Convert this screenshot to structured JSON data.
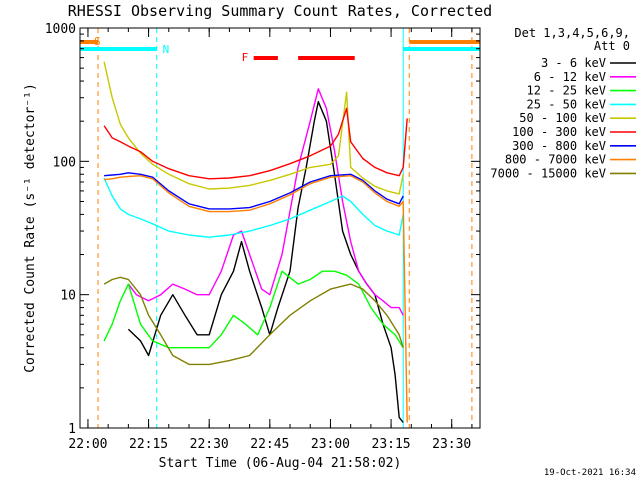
{
  "chart_data": {
    "type": "line",
    "title": "RHESSI Observing Summary Count Rates, Corrected",
    "xlabel": "Start Time (06-Aug-04 21:58:02)",
    "ylabel": "Corrected Count Rate (s⁻¹ detector⁻¹)",
    "y_scale": "log",
    "xlim": [
      "21:58:02",
      "23:37:00"
    ],
    "ylim": [
      1,
      1000
    ],
    "x_ticks": [
      "22:00",
      "22:15",
      "22:30",
      "22:45",
      "23:00",
      "23:15",
      "23:30"
    ],
    "y_ticks": [
      "1",
      "10",
      "100",
      "1000"
    ],
    "grid": false,
    "legend_position": "top-right, outside plot",
    "legend_header": [
      "Det 1,3,4,5,6,9,",
      "Att 0"
    ],
    "footer_date": "19-Oct-2021 16:34",
    "flags": [
      {
        "label": "S",
        "color": "#ff8000",
        "x_start": "21:58:02",
        "x_end": "22:02:30"
      },
      {
        "label": "N",
        "color": "#00ffff",
        "x_start": "21:58:02",
        "x_end": "22:17:00"
      },
      {
        "label": "F",
        "color": "#ff0000",
        "x_start": "22:41:00",
        "x_end": "22:47:00"
      },
      {
        "label": "",
        "color": "#ff0000",
        "x_start": "22:52:00",
        "x_end": "23:06:00"
      },
      {
        "label": "",
        "color": "#00ffff",
        "x_start": "23:18:00",
        "x_end": "23:37:00"
      },
      {
        "label": "",
        "color": "#ff8000",
        "x_start": "23:19:30",
        "x_end": "23:37:00"
      }
    ],
    "markers": [
      {
        "time": "21:58:02",
        "color": "#00ffff"
      },
      {
        "time": "22:02:30",
        "color": "#ff8000"
      },
      {
        "time": "22:17:00",
        "color": "#00ffff"
      },
      {
        "time": "23:18:00",
        "color": "#00ffff"
      },
      {
        "time": "23:19:30",
        "color": "#ff8000"
      },
      {
        "time": "23:35:00",
        "color": "#ff8000"
      }
    ],
    "series": [
      {
        "name": "3 - 6 keV",
        "color": "#000000",
        "points": [
          [
            "22:10",
            5.5
          ],
          [
            "22:13",
            4.5
          ],
          [
            "22:15",
            3.5
          ],
          [
            "22:18",
            7
          ],
          [
            "22:21",
            10
          ],
          [
            "22:24",
            7
          ],
          [
            "22:27",
            5
          ],
          [
            "22:30",
            5
          ],
          [
            "22:33",
            10
          ],
          [
            "22:36",
            15
          ],
          [
            "22:38",
            25
          ],
          [
            "22:40",
            15
          ],
          [
            "22:43",
            8
          ],
          [
            "22:45",
            5
          ],
          [
            "22:47",
            8
          ],
          [
            "22:50",
            15
          ],
          [
            "22:52",
            45
          ],
          [
            "22:54",
            90
          ],
          [
            "22:56",
            200
          ],
          [
            "22:57",
            280
          ],
          [
            "22:59",
            200
          ],
          [
            "23:01",
            80
          ],
          [
            "23:03",
            30
          ],
          [
            "23:05",
            20
          ],
          [
            "23:07",
            15
          ],
          [
            "23:09",
            12
          ],
          [
            "23:11",
            10
          ],
          [
            "23:13",
            6
          ],
          [
            "23:15",
            4
          ],
          [
            "23:16",
            2.5
          ],
          [
            "23:17",
            1.2
          ],
          [
            "23:18",
            1.1
          ]
        ]
      },
      {
        "name": "6 - 12 keV",
        "color": "#ff00ff",
        "points": [
          [
            "22:10",
            12
          ],
          [
            "22:12",
            10
          ],
          [
            "22:15",
            9
          ],
          [
            "22:18",
            10
          ],
          [
            "22:21",
            12
          ],
          [
            "22:24",
            11
          ],
          [
            "22:27",
            10
          ],
          [
            "22:30",
            10
          ],
          [
            "22:33",
            15
          ],
          [
            "22:36",
            28
          ],
          [
            "22:38",
            30
          ],
          [
            "22:40",
            20
          ],
          [
            "22:43",
            11
          ],
          [
            "22:45",
            10
          ],
          [
            "22:48",
            20
          ],
          [
            "22:52",
            90
          ],
          [
            "22:55",
            200
          ],
          [
            "22:57",
            350
          ],
          [
            "22:59",
            250
          ],
          [
            "23:01",
            120
          ],
          [
            "23:03",
            50
          ],
          [
            "23:05",
            25
          ],
          [
            "23:07",
            15
          ],
          [
            "23:09",
            12
          ],
          [
            "23:11",
            10
          ],
          [
            "23:13",
            9
          ],
          [
            "23:15",
            8
          ],
          [
            "23:17",
            8
          ],
          [
            "23:18",
            7
          ]
        ]
      },
      {
        "name": "12 - 25 keV",
        "color": "#00ff00",
        "points": [
          [
            "22:04",
            4.5
          ],
          [
            "22:06",
            6
          ],
          [
            "22:08",
            9
          ],
          [
            "22:10",
            12
          ],
          [
            "22:13",
            6
          ],
          [
            "22:16",
            4.5
          ],
          [
            "22:20",
            4
          ],
          [
            "22:25",
            4
          ],
          [
            "22:30",
            4
          ],
          [
            "22:33",
            5
          ],
          [
            "22:36",
            7
          ],
          [
            "22:39",
            6
          ],
          [
            "22:42",
            5
          ],
          [
            "22:45",
            8
          ],
          [
            "22:48",
            15
          ],
          [
            "22:52",
            12
          ],
          [
            "22:55",
            13
          ],
          [
            "22:58",
            15
          ],
          [
            "23:01",
            15
          ],
          [
            "23:04",
            14
          ],
          [
            "23:07",
            12
          ],
          [
            "23:10",
            8
          ],
          [
            "23:13",
            6
          ],
          [
            "23:16",
            5
          ],
          [
            "23:18",
            4
          ]
        ]
      },
      {
        "name": "25 - 50 keV",
        "color": "#00ffff",
        "points": [
          [
            "22:04",
            75
          ],
          [
            "22:06",
            55
          ],
          [
            "22:08",
            44
          ],
          [
            "22:10",
            40
          ],
          [
            "22:13",
            37
          ],
          [
            "22:16",
            34
          ],
          [
            "22:20",
            30
          ],
          [
            "22:25",
            28
          ],
          [
            "22:30",
            27
          ],
          [
            "22:35",
            28
          ],
          [
            "22:40",
            30
          ],
          [
            "22:45",
            33
          ],
          [
            "22:50",
            37
          ],
          [
            "22:55",
            43
          ],
          [
            "23:00",
            50
          ],
          [
            "23:03",
            55
          ],
          [
            "23:05",
            50
          ],
          [
            "23:08",
            40
          ],
          [
            "23:11",
            33
          ],
          [
            "23:14",
            30
          ],
          [
            "23:17",
            28
          ],
          [
            "23:18",
            40
          ]
        ]
      },
      {
        "name": "50 - 100 keV",
        "color": "#c8c800",
        "points": [
          [
            "22:04",
            560
          ],
          [
            "22:06",
            300
          ],
          [
            "22:08",
            190
          ],
          [
            "22:10",
            150
          ],
          [
            "22:13",
            115
          ],
          [
            "22:16",
            95
          ],
          [
            "22:20",
            80
          ],
          [
            "22:25",
            68
          ],
          [
            "22:30",
            62
          ],
          [
            "22:35",
            63
          ],
          [
            "22:40",
            66
          ],
          [
            "22:45",
            72
          ],
          [
            "22:50",
            80
          ],
          [
            "22:55",
            90
          ],
          [
            "23:00",
            95
          ],
          [
            "23:02",
            110
          ],
          [
            "23:04",
            330
          ],
          [
            "23:05",
            90
          ],
          [
            "23:08",
            75
          ],
          [
            "23:11",
            65
          ],
          [
            "23:14",
            60
          ],
          [
            "23:17",
            57
          ],
          [
            "23:18",
            80
          ]
        ]
      },
      {
        "name": "100 - 300 keV",
        "color": "#ff0000",
        "points": [
          [
            "22:04",
            185
          ],
          [
            "22:06",
            150
          ],
          [
            "22:08",
            140
          ],
          [
            "22:10",
            130
          ],
          [
            "22:13",
            118
          ],
          [
            "22:16",
            100
          ],
          [
            "22:20",
            88
          ],
          [
            "22:25",
            78
          ],
          [
            "22:30",
            74
          ],
          [
            "22:35",
            75
          ],
          [
            "22:40",
            78
          ],
          [
            "22:45",
            85
          ],
          [
            "22:50",
            96
          ],
          [
            "22:55",
            110
          ],
          [
            "23:00",
            130
          ],
          [
            "23:02",
            160
          ],
          [
            "23:04",
            250
          ],
          [
            "23:05",
            140
          ],
          [
            "23:08",
            105
          ],
          [
            "23:11",
            90
          ],
          [
            "23:14",
            82
          ],
          [
            "23:17",
            78
          ],
          [
            "23:18",
            90
          ],
          [
            "23:19",
            210
          ]
        ]
      },
      {
        "name": "300 - 800 keV",
        "color": "#0000ff",
        "points": [
          [
            "22:04",
            78
          ],
          [
            "22:06",
            79
          ],
          [
            "22:08",
            80
          ],
          [
            "22:10",
            82
          ],
          [
            "22:13",
            80
          ],
          [
            "22:16",
            76
          ],
          [
            "22:20",
            60
          ],
          [
            "22:25",
            48
          ],
          [
            "22:30",
            44
          ],
          [
            "22:35",
            44
          ],
          [
            "22:40",
            45
          ],
          [
            "22:45",
            50
          ],
          [
            "22:50",
            58
          ],
          [
            "22:55",
            70
          ],
          [
            "23:00",
            78
          ],
          [
            "23:05",
            80
          ],
          [
            "23:08",
            72
          ],
          [
            "23:11",
            60
          ],
          [
            "23:14",
            52
          ],
          [
            "23:17",
            48
          ],
          [
            "23:18",
            55
          ]
        ]
      },
      {
        "name": "800 - 7000 keV",
        "color": "#ff8000",
        "points": [
          [
            "22:04",
            73
          ],
          [
            "22:06",
            74
          ],
          [
            "22:08",
            76
          ],
          [
            "22:10",
            77
          ],
          [
            "22:13",
            78
          ],
          [
            "22:16",
            74
          ],
          [
            "22:20",
            58
          ],
          [
            "22:25",
            46
          ],
          [
            "22:30",
            42
          ],
          [
            "22:35",
            42
          ],
          [
            "22:40",
            43
          ],
          [
            "22:45",
            48
          ],
          [
            "22:50",
            56
          ],
          [
            "22:55",
            68
          ],
          [
            "23:00",
            76
          ],
          [
            "23:05",
            78
          ],
          [
            "23:08",
            70
          ],
          [
            "23:11",
            58
          ],
          [
            "23:14",
            50
          ],
          [
            "23:17",
            46
          ],
          [
            "23:18",
            50
          ],
          [
            "23:19",
            1.1
          ]
        ]
      },
      {
        "name": "7000 - 15000 keV",
        "color": "#808000",
        "points": [
          [
            "22:04",
            12
          ],
          [
            "22:06",
            13
          ],
          [
            "22:08",
            13.5
          ],
          [
            "22:10",
            13
          ],
          [
            "22:13",
            10
          ],
          [
            "22:15",
            7
          ],
          [
            "22:18",
            5
          ],
          [
            "22:21",
            3.5
          ],
          [
            "22:25",
            3
          ],
          [
            "22:30",
            3
          ],
          [
            "22:35",
            3.2
          ],
          [
            "22:40",
            3.5
          ],
          [
            "22:45",
            5
          ],
          [
            "22:50",
            7
          ],
          [
            "22:55",
            9
          ],
          [
            "23:00",
            11
          ],
          [
            "23:05",
            12
          ],
          [
            "23:08",
            11
          ],
          [
            "23:11",
            9
          ],
          [
            "23:14",
            7
          ],
          [
            "23:17",
            5
          ],
          [
            "23:18",
            4
          ]
        ]
      }
    ]
  }
}
